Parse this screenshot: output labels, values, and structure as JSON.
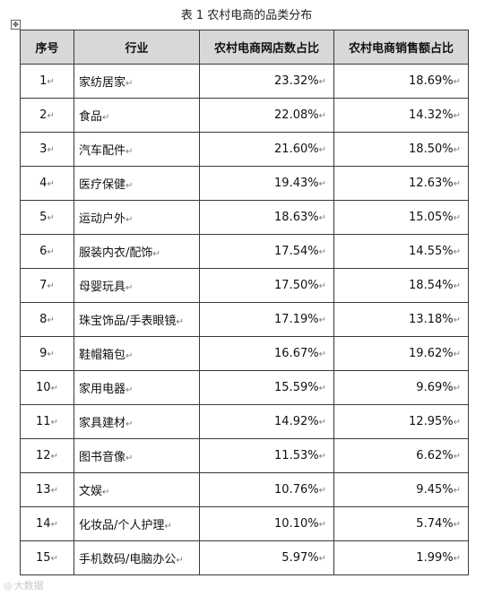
{
  "caption": "表 1   农村电商的品类分布",
  "headers": [
    "序号",
    "行业",
    "农村电商网店数占比",
    "农村电商销售额占比"
  ],
  "rows": [
    {
      "no": "1",
      "industry": "家纺居家",
      "shops": "23.32%",
      "sales": "18.69%"
    },
    {
      "no": "2",
      "industry": "食品",
      "shops": "22.08%",
      "sales": "14.32%"
    },
    {
      "no": "3",
      "industry": "汽车配件",
      "shops": "21.60%",
      "sales": "18.50%"
    },
    {
      "no": "4",
      "industry": "医疗保健",
      "shops": "19.43%",
      "sales": "12.63%"
    },
    {
      "no": "5",
      "industry": "运动户外",
      "shops": "18.63%",
      "sales": "15.05%"
    },
    {
      "no": "6",
      "industry": "服装内衣/配饰",
      "shops": "17.54%",
      "sales": "14.55%"
    },
    {
      "no": "7",
      "industry": "母婴玩具",
      "shops": "17.50%",
      "sales": "18.54%"
    },
    {
      "no": "8",
      "industry": "珠宝饰品/手表眼镜",
      "shops": "17.19%",
      "sales": "13.18%"
    },
    {
      "no": "9",
      "industry": "鞋帽箱包",
      "shops": "16.67%",
      "sales": "19.62%"
    },
    {
      "no": "10",
      "industry": "家用电器",
      "shops": "15.59%",
      "sales": "9.69%"
    },
    {
      "no": "11",
      "industry": "家具建材",
      "shops": "14.92%",
      "sales": "12.95%"
    },
    {
      "no": "12",
      "industry": "图书音像",
      "shops": "11.53%",
      "sales": "6.62%"
    },
    {
      "no": "13",
      "industry": "文娱",
      "shops": "10.76%",
      "sales": "9.45%"
    },
    {
      "no": "14",
      "industry": "化妆品/个人护理",
      "shops": "10.10%",
      "sales": "5.74%"
    },
    {
      "no": "15",
      "industry": "手机数码/电脑办公",
      "shops": "5.97%",
      "sales": "1.99%"
    }
  ],
  "watermark": "大数据"
}
